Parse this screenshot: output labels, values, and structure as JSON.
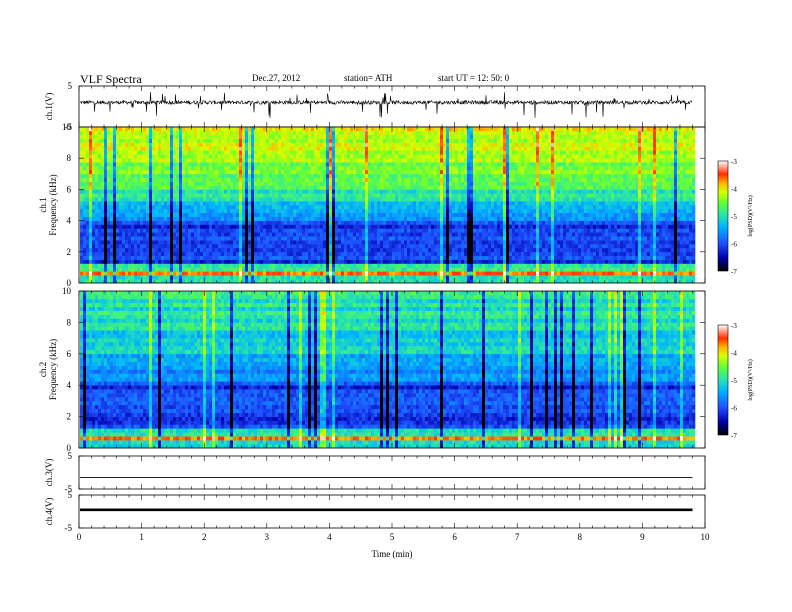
{
  "header": {
    "title": "VLF  Spectra",
    "date": "Dec.27, 2012",
    "station": "station= ATH",
    "start": "start  UT  =   12: 50: 0"
  },
  "chart_data": [
    {
      "type": "line",
      "ylabel": "ch.1(V)",
      "ylim": [
        -5,
        5
      ],
      "yticks": [
        5,
        -5
      ],
      "xlim": [
        0,
        10
      ],
      "description_series": "broadband VLF waveform, baseline near +1 V with frequent spikes from about -5 V to +3 V"
    },
    {
      "type": "heatmap",
      "channel_label": "ch.1",
      "ylabel": "Frequency  (kHz)",
      "ylim": [
        0,
        10
      ],
      "yticks": [
        0,
        2,
        4,
        6,
        8,
        10
      ],
      "xlim": [
        0,
        10
      ],
      "data_end_min": 9.8,
      "colorbar": {
        "label": "log(PSD)(V²/Hz)",
        "range": [
          -7,
          -3
        ],
        "ticks": [
          -7,
          -6,
          -5,
          -4,
          -3
        ]
      }
    },
    {
      "type": "heatmap",
      "channel_label": "ch.2",
      "ylabel": "Frequency  (kHz)",
      "ylim": [
        0,
        10
      ],
      "yticks": [
        0,
        2,
        4,
        6,
        8,
        10
      ],
      "xlim": [
        0,
        10
      ],
      "data_end_min": 9.8,
      "colorbar": {
        "label": "log(PSD)(V²/Hz)",
        "range": [
          -7,
          -3
        ],
        "ticks": [
          -7,
          -6,
          -5,
          -4,
          -3
        ]
      }
    },
    {
      "type": "line",
      "ylabel": "ch.3(V)",
      "ylim": [
        -5,
        5
      ],
      "yticks": [
        5,
        -5
      ],
      "xlim": [
        0,
        10
      ],
      "level_V": -1.5
    },
    {
      "type": "line",
      "ylabel": "ch.4(V)",
      "ylim": [
        -5,
        5
      ],
      "yticks": [
        5,
        -5
      ],
      "xlim": [
        0,
        10
      ],
      "level_V": 0.5,
      "xlabel": "Time  (min)",
      "xticks": [
        0,
        1,
        2,
        3,
        4,
        5,
        6,
        7,
        8,
        9,
        10
      ]
    }
  ],
  "colors": {
    "colormap": [
      "#000000",
      "#0000aa",
      "#1f4fff",
      "#00b4ff",
      "#2ee8a0",
      "#66ff33",
      "#d8ff00",
      "#ffb400",
      "#ff3000",
      "#ffffff"
    ],
    "trace": "#000000"
  }
}
